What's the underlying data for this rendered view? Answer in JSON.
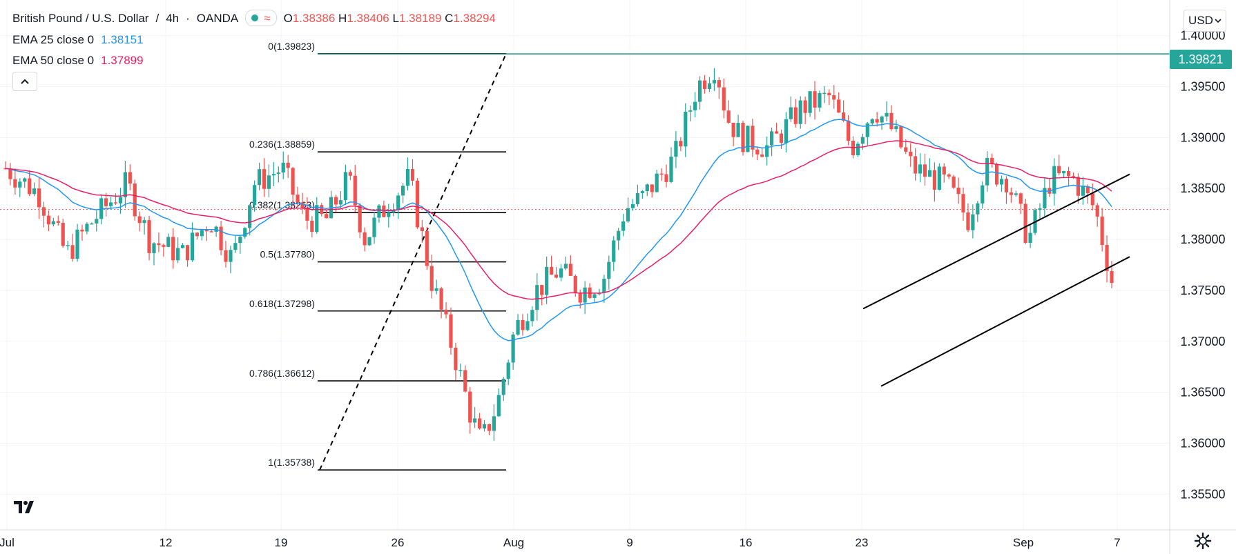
{
  "header": {
    "symbol": "British Pound / U.S. Dollar",
    "interval": "4h",
    "exchange": "OANDA",
    "status_icon": "market-open-dot-icon",
    "replay_icon": "approx-wave-icon",
    "ohlc": {
      "o_label": "O",
      "o": "1.38386",
      "h_label": "H",
      "h": "1.38406",
      "l_label": "L",
      "l": "1.38189",
      "c_label": "C",
      "c": "1.38294"
    }
  },
  "indicators": [
    {
      "name": "EMA 25 close 0",
      "value": "1.38151",
      "color": "#2196f3"
    },
    {
      "name": "EMA 50 close 0",
      "value": "1.37899",
      "color": "#e91e63"
    }
  ],
  "currency": "USD",
  "current_price_tag": "1.39821",
  "colors": {
    "up": "#26a69a",
    "down": "#ef5350",
    "fib": "#000000",
    "level_line": "#1b8a7e",
    "last_price_line": "#ef5350"
  },
  "chart_data": {
    "type": "candlestick",
    "title": "",
    "x_ticks": [
      "Jul",
      "12",
      "19",
      "26",
      "Aug",
      "9",
      "16",
      "23",
      "Sep",
      "7"
    ],
    "y_ticks": [
      "1.40000",
      "1.39500",
      "1.39000",
      "1.38500",
      "1.38000",
      "1.37500",
      "1.37000",
      "1.36500",
      "1.36000",
      "1.35500"
    ],
    "ylim": [
      1.3515,
      1.4035
    ],
    "grid": true,
    "horizontal_level": 1.39821,
    "last_price": 1.38294,
    "fibonacci": [
      {
        "ratio": "0",
        "label": "0(1.39823)",
        "price": 1.39823
      },
      {
        "ratio": "0.236",
        "label": "0.236(1.38859)",
        "price": 1.38859
      },
      {
        "ratio": "0.382",
        "label": "0.382(1.38263)",
        "price": 1.38263
      },
      {
        "ratio": "0.5",
        "label": "0.5(1.37780)",
        "price": 1.3778
      },
      {
        "ratio": "0.618",
        "label": "0.618(1.37298)",
        "price": 1.37298
      },
      {
        "ratio": "0.786",
        "label": "0.786(1.36612)",
        "price": 1.36612
      },
      {
        "ratio": "1",
        "label": "1(1.35738)",
        "price": 1.35738
      }
    ],
    "channel": {
      "upper": {
        "from": [
          0.0,
          1.3732
        ],
        "to": [
          1.0,
          1.3864
        ]
      },
      "lower": {
        "from": [
          0.0,
          1.3656
        ],
        "to": [
          1.0,
          1.3783
        ]
      }
    },
    "anchors": [
      {
        "t": 0.0,
        "p": 1.387
      },
      {
        "t": 0.03,
        "p": 1.3845
      },
      {
        "t": 0.055,
        "p": 1.3785
      },
      {
        "t": 0.08,
        "p": 1.382
      },
      {
        "t": 0.11,
        "p": 1.3855
      },
      {
        "t": 0.13,
        "p": 1.38
      },
      {
        "t": 0.16,
        "p": 1.3785
      },
      {
        "t": 0.185,
        "p": 1.382
      },
      {
        "t": 0.205,
        "p": 1.378
      },
      {
        "t": 0.225,
        "p": 1.3855
      },
      {
        "t": 0.25,
        "p": 1.387
      },
      {
        "t": 0.27,
        "p": 1.382
      },
      {
        "t": 0.29,
        "p": 1.382
      },
      {
        "t": 0.31,
        "p": 1.386
      },
      {
        "t": 0.325,
        "p": 1.38
      },
      {
        "t": 0.345,
        "p": 1.3835
      },
      {
        "t": 0.365,
        "p": 1.386
      },
      {
        "t": 0.385,
        "p": 1.376
      },
      {
        "t": 0.405,
        "p": 1.369
      },
      {
        "t": 0.42,
        "p": 1.363
      },
      {
        "t": 0.43,
        "p": 1.36
      },
      {
        "t": 0.445,
        "p": 1.364
      },
      {
        "t": 0.46,
        "p": 1.371
      },
      {
        "t": 0.48,
        "p": 1.375
      },
      {
        "t": 0.5,
        "p": 1.377
      },
      {
        "t": 0.52,
        "p": 1.375
      },
      {
        "t": 0.54,
        "p": 1.376
      },
      {
        "t": 0.56,
        "p": 1.383
      },
      {
        "t": 0.575,
        "p": 1.384
      },
      {
        "t": 0.59,
        "p": 1.386
      },
      {
        "t": 0.605,
        "p": 1.388
      },
      {
        "t": 0.625,
        "p": 1.395
      },
      {
        "t": 0.642,
        "p": 1.3972
      },
      {
        "t": 0.652,
        "p": 1.392
      },
      {
        "t": 0.665,
        "p": 1.39
      },
      {
        "t": 0.69,
        "p": 1.389
      },
      {
        "t": 0.72,
        "p": 1.393
      },
      {
        "t": 0.745,
        "p": 1.394
      },
      {
        "t": 0.765,
        "p": 1.389
      },
      {
        "t": 0.785,
        "p": 1.393
      },
      {
        "t": 0.8,
        "p": 1.391
      },
      {
        "t": 0.82,
        "p": 1.387
      },
      {
        "t": 0.85,
        "p": 1.3855
      },
      {
        "t": 0.87,
        "p": 1.382
      },
      {
        "t": 0.885,
        "p": 1.387
      },
      {
        "t": 0.905,
        "p": 1.386
      },
      {
        "t": 0.925,
        "p": 1.38
      },
      {
        "t": 0.945,
        "p": 1.386
      },
      {
        "t": 0.965,
        "p": 1.386
      },
      {
        "t": 0.985,
        "p": 1.383
      },
      {
        "t": 1.0,
        "p": 1.376
      }
    ]
  }
}
